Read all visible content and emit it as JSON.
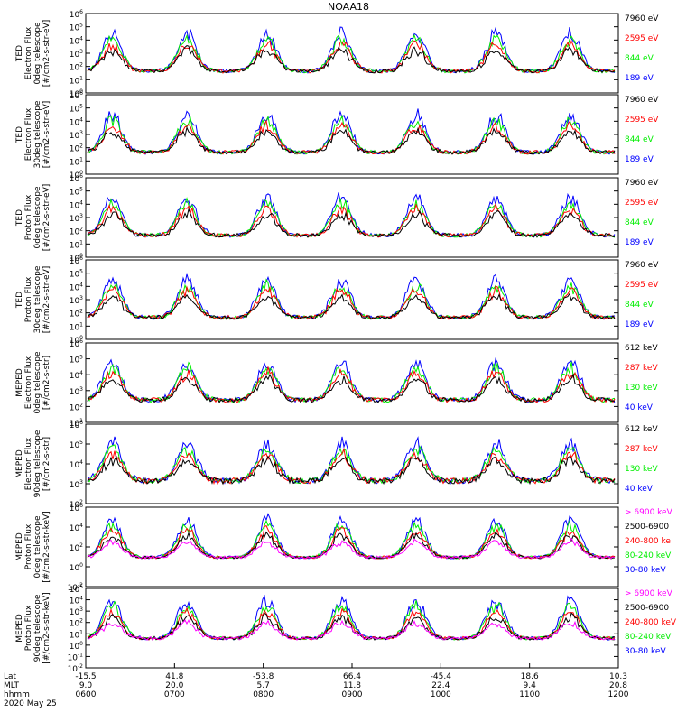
{
  "title": "NOAA18",
  "colors": {
    "blue": "#0000ff",
    "red": "#ff0000",
    "green": "#00ee00",
    "black": "#000000",
    "magenta": "#ff00ff"
  },
  "chart_data": [
    {
      "type": "scatter",
      "ylabel": [
        "TED",
        "Electron Flux",
        "0deg telescope",
        "[#/cm2-s-str-eV]"
      ],
      "ylim": [
        1,
        1000000
      ],
      "ytick_exp": [
        0,
        1,
        2,
        3,
        4,
        5,
        6
      ],
      "legend": [
        {
          "label": "7960 eV",
          "color": "black"
        },
        {
          "label": "2595 eV",
          "color": "red"
        },
        {
          "label": "844 eV",
          "color": "green"
        },
        {
          "label": "189 eV",
          "color": "blue"
        }
      ]
    },
    {
      "type": "scatter",
      "ylabel": [
        "TED",
        "Electron Flux",
        "30deg telescope",
        "[#/cm2-s-str-eV]"
      ],
      "ylim": [
        1,
        1000000
      ],
      "ytick_exp": [
        0,
        1,
        2,
        3,
        4,
        5,
        6
      ],
      "legend": [
        {
          "label": "7960 eV",
          "color": "black"
        },
        {
          "label": "2595 eV",
          "color": "red"
        },
        {
          "label": "844 eV",
          "color": "green"
        },
        {
          "label": "189 eV",
          "color": "blue"
        }
      ]
    },
    {
      "type": "scatter",
      "ylabel": [
        "TED",
        "Proton Flux",
        "0deg telescope",
        "[#/cm2-s-str-eV]"
      ],
      "ylim": [
        1,
        1000000
      ],
      "ytick_exp": [
        0,
        1,
        2,
        3,
        4,
        5,
        6
      ],
      "legend": [
        {
          "label": "7960 eV",
          "color": "black"
        },
        {
          "label": "2595 eV",
          "color": "red"
        },
        {
          "label": "844 eV",
          "color": "green"
        },
        {
          "label": "189 eV",
          "color": "blue"
        }
      ]
    },
    {
      "type": "scatter",
      "ylabel": [
        "TED",
        "Proton Flux",
        "30deg telescope",
        "[#/cm2-s-str-eV]"
      ],
      "ylim": [
        1,
        1000000
      ],
      "ytick_exp": [
        0,
        1,
        2,
        3,
        4,
        5,
        6
      ],
      "legend": [
        {
          "label": "7960 eV",
          "color": "black"
        },
        {
          "label": "2595 eV",
          "color": "red"
        },
        {
          "label": "844 eV",
          "color": "green"
        },
        {
          "label": "189 eV",
          "color": "blue"
        }
      ]
    },
    {
      "type": "scatter",
      "ylabel": [
        "MEPED",
        "Electron Flux",
        "0deg telescope",
        "[#/cm2-s-str]"
      ],
      "ylim": [
        10,
        1000000
      ],
      "ytick_exp": [
        1,
        2,
        3,
        4,
        5,
        6
      ],
      "legend": [
        {
          "label": "612 keV",
          "color": "black"
        },
        {
          "label": "287 keV",
          "color": "red"
        },
        {
          "label": "130 keV",
          "color": "green"
        },
        {
          "label": "40 keV",
          "color": "blue"
        }
      ]
    },
    {
      "type": "scatter",
      "ylabel": [
        "MEPED",
        "Electron Flux",
        "90deg telescope",
        "[#/cm2-s-str]"
      ],
      "ylim": [
        100,
        1000000
      ],
      "ytick_exp": [
        2,
        3,
        4,
        5,
        6
      ],
      "legend": [
        {
          "label": "612 keV",
          "color": "black"
        },
        {
          "label": "287 keV",
          "color": "red"
        },
        {
          "label": "130 keV",
          "color": "green"
        },
        {
          "label": "40 keV",
          "color": "blue"
        }
      ]
    },
    {
      "type": "scatter",
      "ylabel": [
        "MEPED",
        "Proton Flux",
        "0deg telescope",
        "[#/cm2-s-str-keV]"
      ],
      "ylim": [
        0.01,
        1000000
      ],
      "ytick_exp": [
        -2,
        0,
        2,
        4,
        6
      ],
      "legend": [
        {
          "label": "> 6900 keV",
          "color": "magenta"
        },
        {
          "label": "2500-6900",
          "color": "black"
        },
        {
          "label": "240-800 ke",
          "color": "red"
        },
        {
          "label": "80-240 keV",
          "color": "green"
        },
        {
          "label": "30-80 keV",
          "color": "blue"
        }
      ]
    },
    {
      "type": "scatter",
      "ylabel": [
        "MEPED",
        "Proton Flux",
        "90deg telescope",
        "[#/cm2-s-str-keV]"
      ],
      "ylim": [
        0.01,
        100000
      ],
      "ytick_exp": [
        -2,
        -1,
        0,
        1,
        2,
        3,
        4,
        5
      ],
      "legend": [
        {
          "label": "> 6900 keV",
          "color": "magenta"
        },
        {
          "label": "2500-6900",
          "color": "black"
        },
        {
          "label": "240-800 keV",
          "color": "red"
        },
        {
          "label": "80-240 keV",
          "color": "green"
        },
        {
          "label": "30-80 keV",
          "color": "blue"
        }
      ]
    }
  ],
  "xaxis": {
    "row_labels": [
      "Lat",
      "MLT",
      "hhmm",
      "2020 May 25"
    ],
    "ticks": [
      {
        "lat": "-15.5",
        "mlt": "9.0",
        "hhmm": "0600"
      },
      {
        "lat": "41.8",
        "mlt": "20.0",
        "hhmm": "0700"
      },
      {
        "lat": "-53.8",
        "mlt": "5.7",
        "hhmm": "0800"
      },
      {
        "lat": "66.4",
        "mlt": "11.8",
        "hhmm": "0900"
      },
      {
        "lat": "-45.4",
        "mlt": "22.4",
        "hhmm": "1000"
      },
      {
        "lat": "18.6",
        "mlt": "9.4",
        "hhmm": "1100"
      },
      {
        "lat": "10.3",
        "mlt": "20.8",
        "hhmm": "1200"
      }
    ]
  }
}
